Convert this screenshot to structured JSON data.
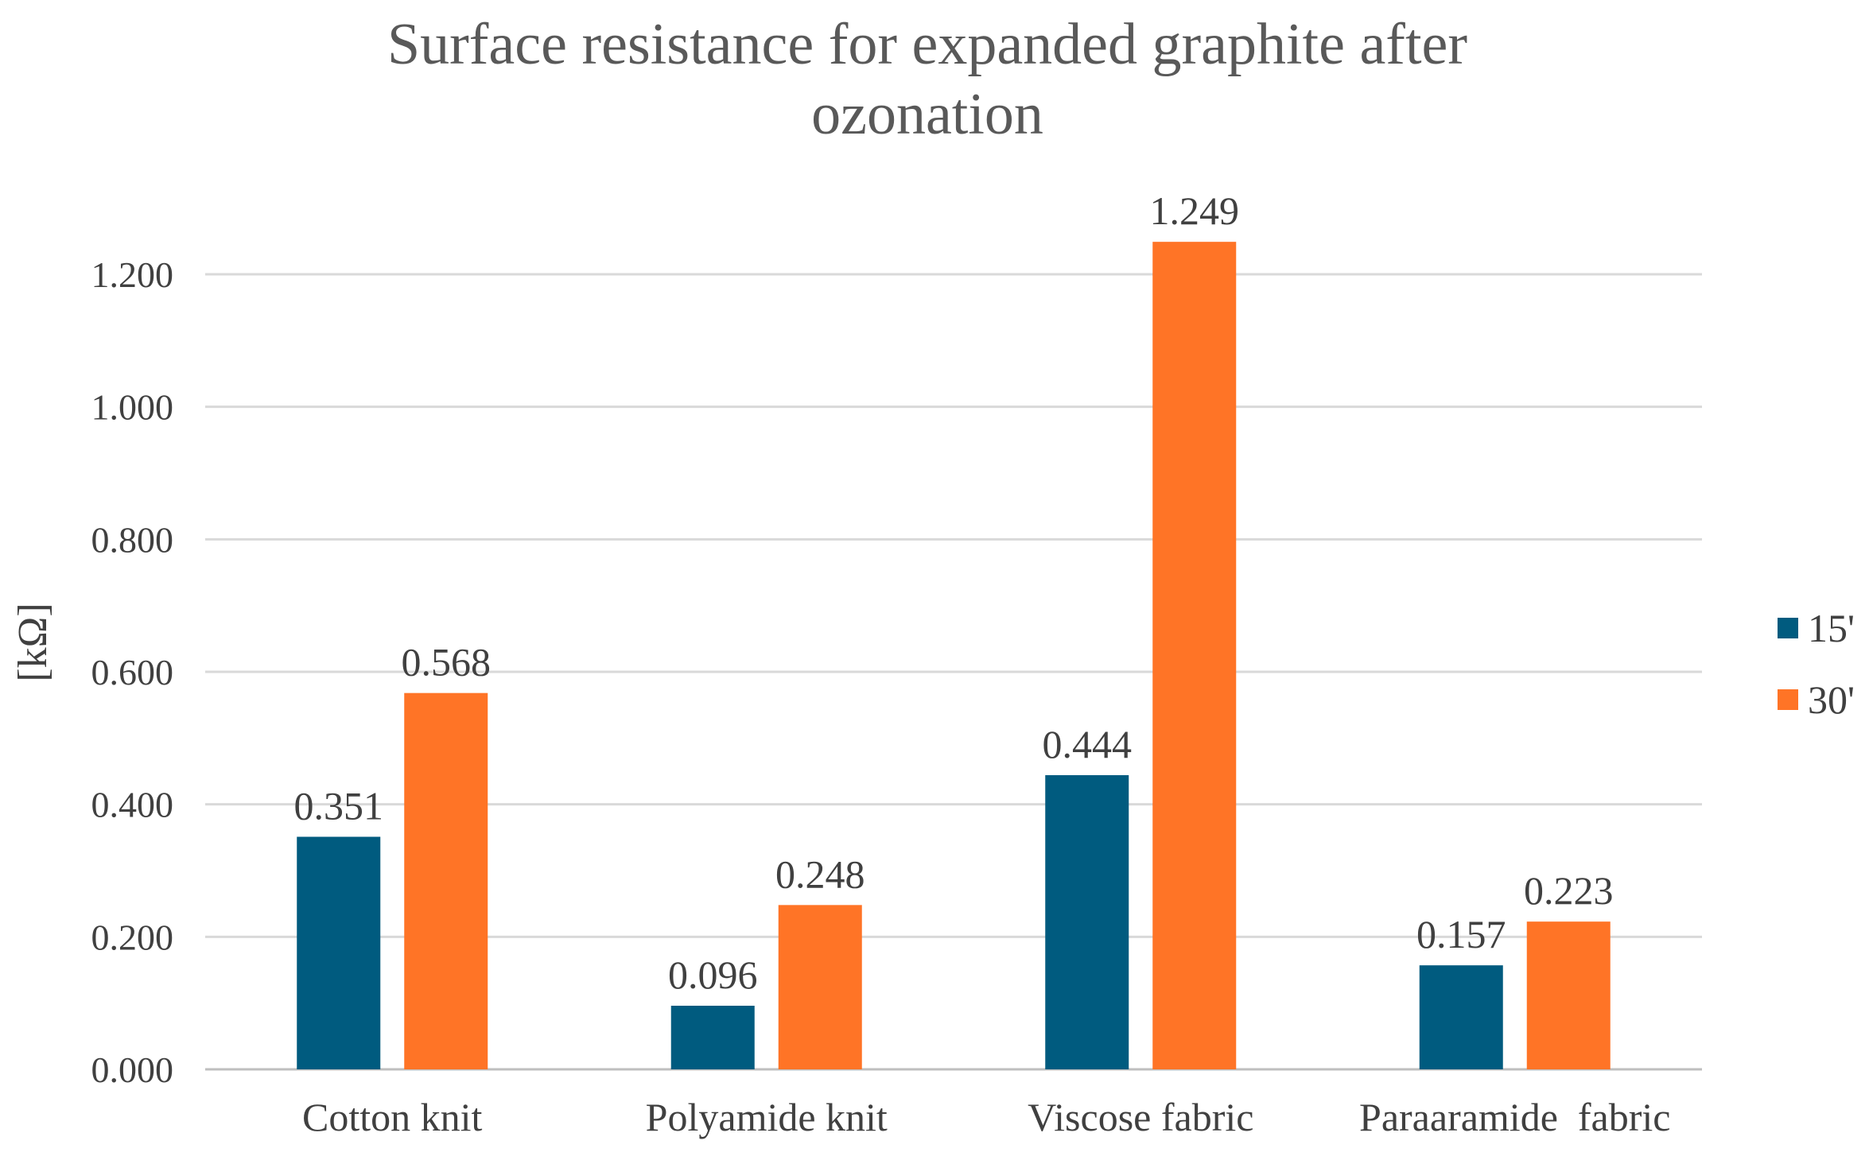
{
  "chart_data": {
    "type": "bar",
    "title_lines": [
      "Surface resistance for expanded graphite after",
      "ozonation"
    ],
    "xlabel": "",
    "ylabel": "[kΩ]",
    "ylim": [
      0,
      1.2
    ],
    "yticks": [
      0.0,
      0.2,
      0.4,
      0.6,
      0.8,
      1.0,
      1.2
    ],
    "ytick_labels": [
      "0.000",
      "0.200",
      "0.400",
      "0.600",
      "0.800",
      "1.000",
      "1.200"
    ],
    "grid": true,
    "legend_position": "right",
    "categories": [
      "Cotton knit",
      "Polyamide knit",
      "Viscose fabric",
      "Paraaramide  fabric"
    ],
    "series": [
      {
        "name": "15'",
        "color": "#005b7f",
        "values": [
          0.351,
          0.096,
          0.444,
          0.157
        ],
        "labels": [
          "0.351",
          "0.096",
          "0.444",
          "0.157"
        ]
      },
      {
        "name": "30'",
        "color": "#ff7426",
        "values": [
          0.568,
          0.248,
          1.249,
          0.223
        ],
        "labels": [
          "0.568",
          "0.248",
          "1.249",
          "0.223"
        ]
      }
    ]
  }
}
